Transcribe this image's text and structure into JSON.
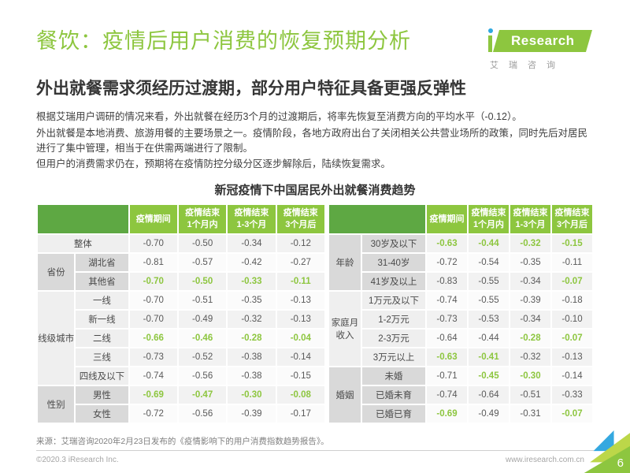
{
  "header": {
    "title": "餐饮：疫情后用户消费的恢复预期分析",
    "subtitle": "外出就餐需求须经历过渡期，部分用户特征具备更强反弹性",
    "logo": {
      "brand_full": "iResearch",
      "plate_text": "Research",
      "caption": "艾瑞咨询"
    }
  },
  "intro": {
    "paragraphs": [
      "根据艾瑞用户调研的情况来看，外出就餐在经历3个月的过渡期后，将率先恢复至消费方向的平均水平（-0.12）。",
      "外出就餐是本地消费、旅游用餐的主要场景之一。疫情阶段，各地方政府出台了关闭相关公共营业场所的政策，同时先后对居民进行了集中管理，相当于在供需两端进行了限制。",
      "但用户的消费需求仍在，预期将在疫情防控分级分区逐步解除后，陆续恢复需求。"
    ]
  },
  "chart_data": {
    "type": "table",
    "title": "新冠疫情下中国居民外出就餐消费趋势",
    "col_headers": [
      "疫情期间",
      "疫情结束\n1个月内",
      "疫情结束\n1-3个月",
      "疫情结束\n3个月后"
    ],
    "left": {
      "groups": [
        {
          "name": "",
          "shade": "light",
          "merged": true,
          "rows": [
            {
              "label": "整体",
              "values": [
                "-0.70",
                "-0.50",
                "-0.34",
                "-0.12"
              ],
              "green": [
                0,
                0,
                0,
                0
              ]
            }
          ]
        },
        {
          "name": "省份",
          "shade": "dark",
          "merged": false,
          "rows": [
            {
              "label": "湖北省",
              "values": [
                "-0.81",
                "-0.57",
                "-0.42",
                "-0.27"
              ],
              "green": [
                0,
                0,
                0,
                0
              ]
            },
            {
              "label": "其他省",
              "values": [
                "-0.70",
                "-0.50",
                "-0.33",
                "-0.11"
              ],
              "green": [
                1,
                1,
                1,
                1
              ]
            }
          ]
        },
        {
          "name": "线级城市",
          "shade": "light",
          "merged": false,
          "rows": [
            {
              "label": "一线",
              "values": [
                "-0.70",
                "-0.51",
                "-0.35",
                "-0.13"
              ],
              "green": [
                0,
                0,
                0,
                0
              ]
            },
            {
              "label": "新一线",
              "values": [
                "-0.70",
                "-0.49",
                "-0.32",
                "-0.13"
              ],
              "green": [
                0,
                0,
                0,
                0
              ]
            },
            {
              "label": "二线",
              "values": [
                "-0.66",
                "-0.46",
                "-0.28",
                "-0.04"
              ],
              "green": [
                1,
                1,
                1,
                1
              ]
            },
            {
              "label": "三线",
              "values": [
                "-0.73",
                "-0.52",
                "-0.38",
                "-0.14"
              ],
              "green": [
                0,
                0,
                0,
                0
              ]
            },
            {
              "label": "四线及以下",
              "values": [
                "-0.74",
                "-0.56",
                "-0.38",
                "-0.15"
              ],
              "green": [
                0,
                0,
                0,
                0
              ]
            }
          ]
        },
        {
          "name": "性别",
          "shade": "dark",
          "merged": false,
          "rows": [
            {
              "label": "男性",
              "values": [
                "-0.69",
                "-0.47",
                "-0.30",
                "-0.08"
              ],
              "green": [
                1,
                1,
                1,
                1
              ]
            },
            {
              "label": "女性",
              "values": [
                "-0.72",
                "-0.56",
                "-0.39",
                "-0.17"
              ],
              "green": [
                0,
                0,
                0,
                0
              ]
            }
          ]
        }
      ]
    },
    "right": {
      "groups": [
        {
          "name": "年龄",
          "shade": "dark",
          "merged": false,
          "rows": [
            {
              "label": "30岁及以下",
              "values": [
                "-0.63",
                "-0.44",
                "-0.32",
                "-0.15"
              ],
              "green": [
                1,
                1,
                1,
                1
              ]
            },
            {
              "label": "31-40岁",
              "values": [
                "-0.72",
                "-0.54",
                "-0.35",
                "-0.11"
              ],
              "green": [
                0,
                0,
                0,
                0
              ]
            },
            {
              "label": "41岁及以上",
              "values": [
                "-0.83",
                "-0.55",
                "-0.34",
                "-0.07"
              ],
              "green": [
                0,
                0,
                0,
                1
              ]
            }
          ]
        },
        {
          "name": "家庭月收入",
          "shade": "light",
          "merged": false,
          "rows": [
            {
              "label": "1万元及以下",
              "values": [
                "-0.74",
                "-0.55",
                "-0.39",
                "-0.18"
              ],
              "green": [
                0,
                0,
                0,
                0
              ]
            },
            {
              "label": "1-2万元",
              "values": [
                "-0.73",
                "-0.53",
                "-0.34",
                "-0.10"
              ],
              "green": [
                0,
                0,
                0,
                0
              ]
            },
            {
              "label": "2-3万元",
              "values": [
                "-0.64",
                "-0.44",
                "-0.28",
                "-0.07"
              ],
              "green": [
                0,
                0,
                1,
                1
              ]
            },
            {
              "label": "3万元以上",
              "values": [
                "-0.63",
                "-0.41",
                "-0.32",
                "-0.13"
              ],
              "green": [
                1,
                1,
                0,
                0
              ]
            }
          ]
        },
        {
          "name": "婚姻",
          "shade": "dark",
          "merged": false,
          "rows": [
            {
              "label": "未婚",
              "values": [
                "-0.71",
                "-0.45",
                "-0.30",
                "-0.14"
              ],
              "green": [
                0,
                1,
                1,
                0
              ]
            },
            {
              "label": "已婚未育",
              "values": [
                "-0.74",
                "-0.64",
                "-0.51",
                "-0.33"
              ],
              "green": [
                0,
                0,
                0,
                0
              ]
            },
            {
              "label": "已婚已育",
              "values": [
                "-0.69",
                "-0.49",
                "-0.31",
                "-0.07"
              ],
              "green": [
                1,
                0,
                0,
                1
              ]
            }
          ]
        }
      ]
    }
  },
  "footer": {
    "source": "来源：艾瑞咨询2020年2月23日发布的《疫情影响下的用户消费指数趋势报告》。",
    "copyright": "©2020.3 iResearch Inc.",
    "site_url": "www.iresearch.com.cn",
    "page_number": "6"
  },
  "colors": {
    "accent_green": "#8dc63f",
    "corner_header_green": "#5ea843",
    "logo_dot_blue": "#2fa8e0",
    "deco_blue": "#35a8e0",
    "deco_light_green": "#bcd749",
    "group_shade_dark": "#d9d9d9",
    "group_shade_light": "#efefef"
  }
}
